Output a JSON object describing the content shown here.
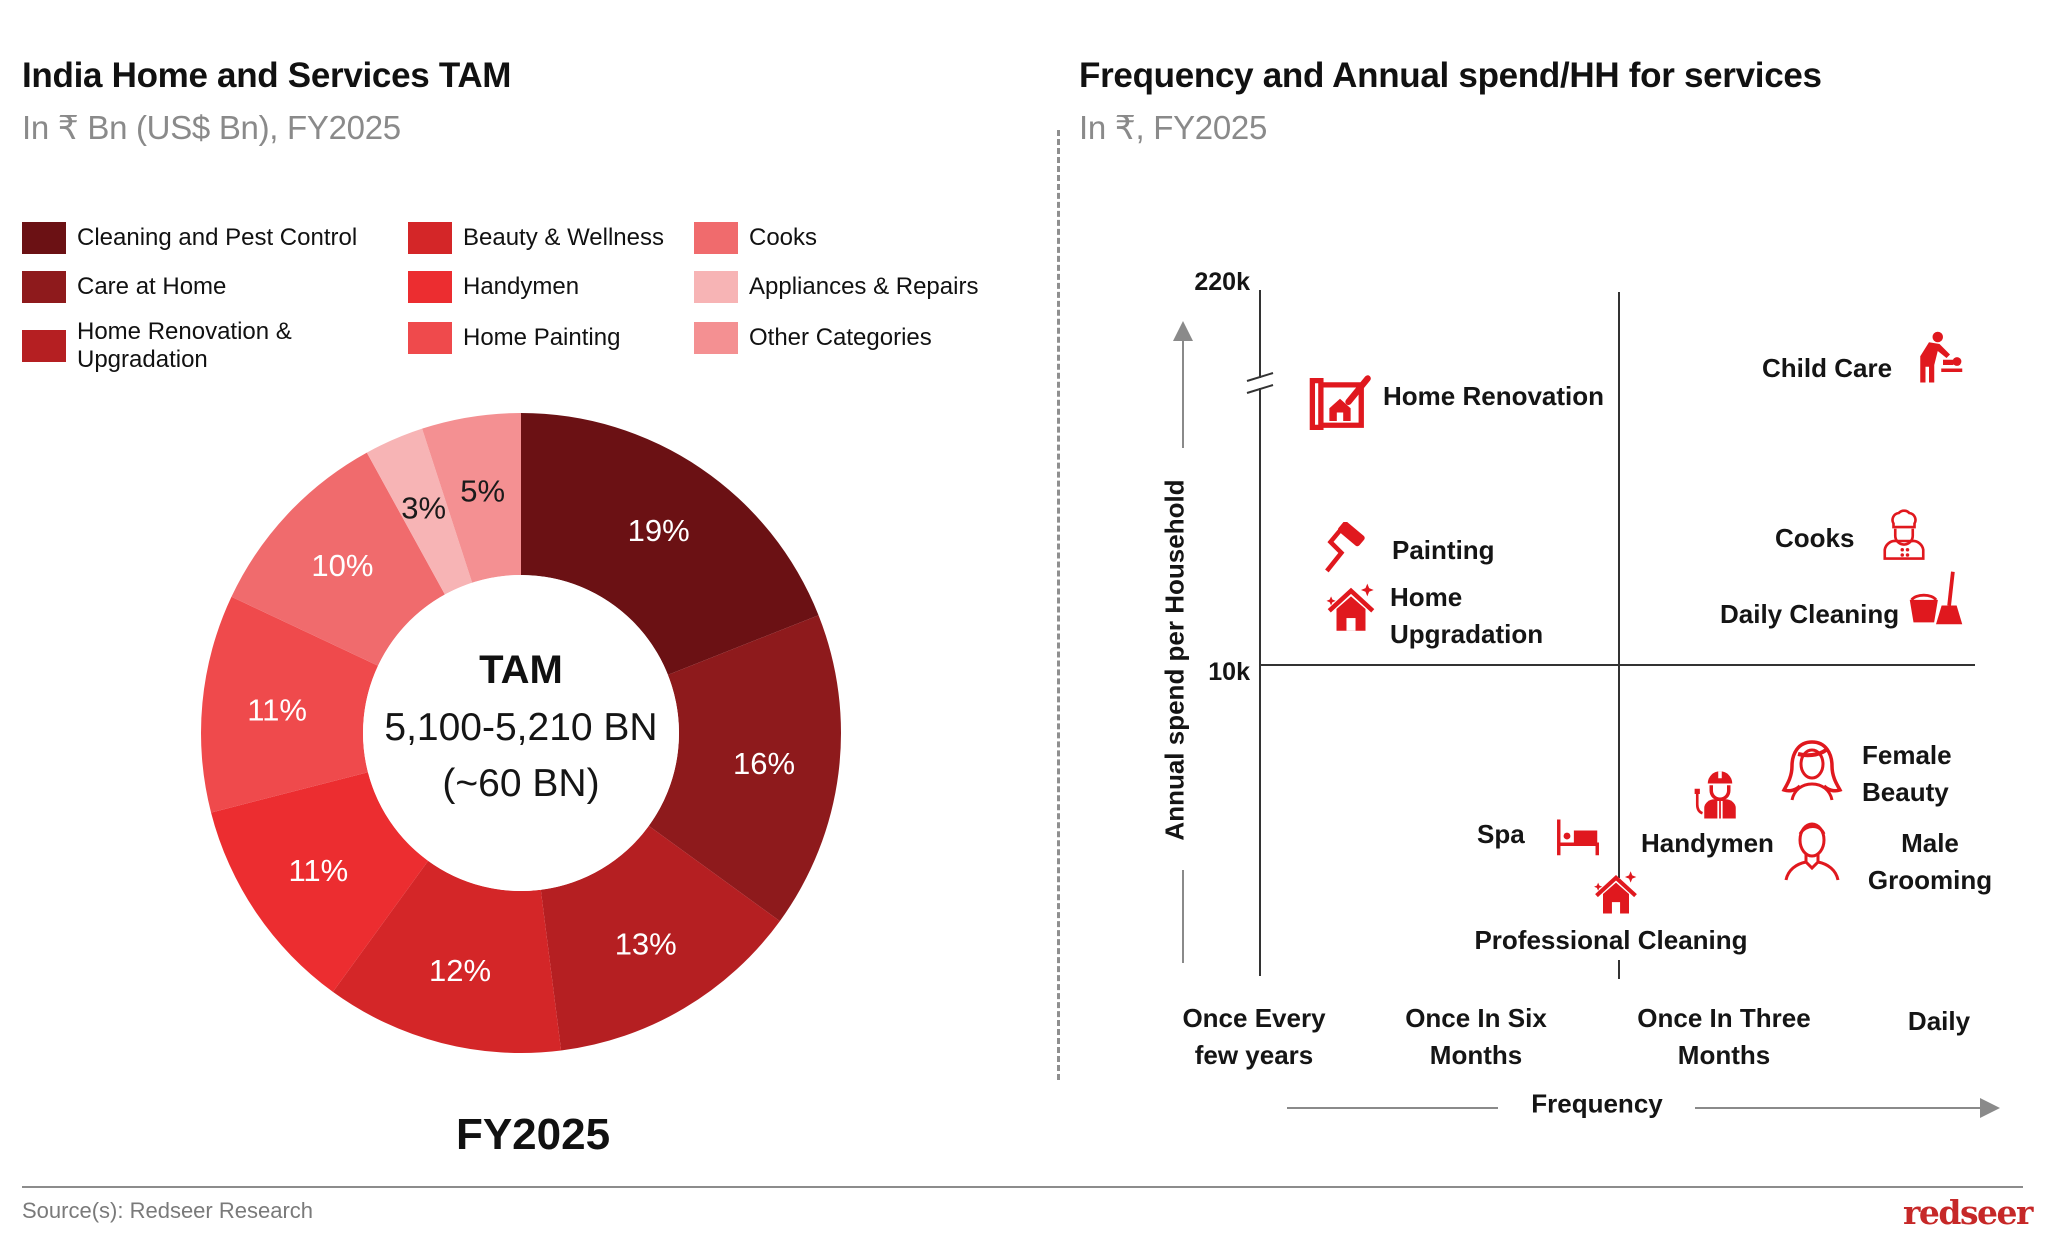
{
  "left_panel": {
    "title": "India Home and Services TAM",
    "subtitle": "In ₹ Bn (US$ Bn), FY2025",
    "period_label": "FY2025",
    "center": {
      "label": "TAM",
      "value_inr": "5,100-5,210 BN",
      "value_usd": "(~60 BN)"
    }
  },
  "right_panel": {
    "title": "Frequency and Annual spend/HH for services",
    "subtitle": "In ₹, FY2025"
  },
  "footer": {
    "source": "Source(s): Redseer Research",
    "logo": "redseer"
  },
  "chart_data": [
    {
      "type": "pie",
      "variant": "donut",
      "title": "India Home and Services TAM",
      "subtitle": "In ₹ Bn (US$ Bn), FY2025",
      "start_angle": "12 o'clock, clockwise",
      "unit": "%",
      "legend_position": "top",
      "slices": [
        {
          "name": "Cleaning and Pest Control",
          "value": 19,
          "label": "19%",
          "color": "#6b1114"
        },
        {
          "name": "Care at Home",
          "value": 16,
          "label": "16%",
          "color": "#8e1a1c"
        },
        {
          "name": "Home Renovation & Upgradation",
          "value": 13,
          "label": "13%",
          "color": "#b51f22"
        },
        {
          "name": "Beauty & Wellness",
          "value": 12,
          "label": "12%",
          "color": "#d42628"
        },
        {
          "name": "Handymen",
          "value": 11,
          "label": "11%",
          "color": "#ec2d30"
        },
        {
          "name": "Home Painting",
          "value": 11,
          "label": "11%",
          "color": "#ef4a4c"
        },
        {
          "name": "Cooks",
          "value": 10,
          "label": "10%",
          "color": "#f06b6d"
        },
        {
          "name": "Appliances & Repairs",
          "value": 3,
          "label": "3%",
          "color": "#f7b4b5"
        },
        {
          "name": "Other Categories",
          "value": 5,
          "label": "5%",
          "color": "#f49092"
        }
      ],
      "legend_order": [
        "Cleaning and Pest Control",
        "Care at Home",
        "Home Renovation & Upgradation",
        "Beauty & Wellness",
        "Handymen",
        "Home Painting",
        "Cooks",
        "Appliances & Repairs",
        "Other Categories"
      ],
      "center_text": [
        "TAM",
        "5,100-5,210 BN",
        "(~60 BN)"
      ],
      "xlabel": "FY2025"
    },
    {
      "type": "scatter",
      "variant": "quadrant",
      "title": "Frequency and Annual spend/HH for services",
      "subtitle": "In ₹, FY2025",
      "xlabel": "Frequency",
      "ylabel": "Annual spend per Household",
      "x_categories": [
        "Once Every few years",
        "Once In Six Months",
        "Once In Three Months",
        "Daily"
      ],
      "y_ticks": [
        "10k",
        "220k"
      ],
      "y_axis_break": true,
      "quadrant_dividers": {
        "x": "between Once In Six Months and Once In Three Months",
        "y": "10k"
      },
      "grid": false,
      "marker_color": "#e0181e",
      "points": [
        {
          "name": "Home Renovation",
          "icon": "blueprint-house-icon",
          "x_pos": 0.3,
          "y_level": 0.83,
          "quadrant": "top-left"
        },
        {
          "name": "Painting",
          "icon": "paint-roller-icon",
          "x_pos": 0.3,
          "y_level": 0.43,
          "quadrant": "top-left"
        },
        {
          "name": "Home Upgradation",
          "icon": "sparkle-house-icon",
          "x_pos": 0.32,
          "y_level": 0.26,
          "quadrant": "top-left"
        },
        {
          "name": "Child Care",
          "icon": "child-care-icon",
          "x_pos": 2.95,
          "y_level": 0.93,
          "quadrant": "top-right"
        },
        {
          "name": "Cooks",
          "icon": "chef-icon",
          "x_pos": 2.85,
          "y_level": 0.47,
          "quadrant": "top-right"
        },
        {
          "name": "Daily Cleaning",
          "icon": "bucket-mop-icon",
          "x_pos": 2.95,
          "y_level": 0.22,
          "quadrant": "top-right"
        },
        {
          "name": "Spa",
          "icon": "spa-bed-icon",
          "x_pos": 1.35,
          "y_level": -0.55,
          "quadrant": "bottom-left"
        },
        {
          "name": "Professional Cleaning",
          "icon": "sparkle-house-icon",
          "x_pos": 1.62,
          "y_level": -0.75,
          "quadrant": "bottom-center"
        },
        {
          "name": "Handymen",
          "icon": "electrician-icon",
          "x_pos": 2.0,
          "y_level": -0.4,
          "quadrant": "bottom-right"
        },
        {
          "name": "Female Beauty",
          "icon": "woman-icon",
          "x_pos": 2.55,
          "y_level": -0.35,
          "quadrant": "bottom-right"
        },
        {
          "name": "Male Grooming",
          "icon": "man-icon",
          "x_pos": 2.55,
          "y_level": -0.6,
          "quadrant": "bottom-right"
        }
      ]
    }
  ]
}
